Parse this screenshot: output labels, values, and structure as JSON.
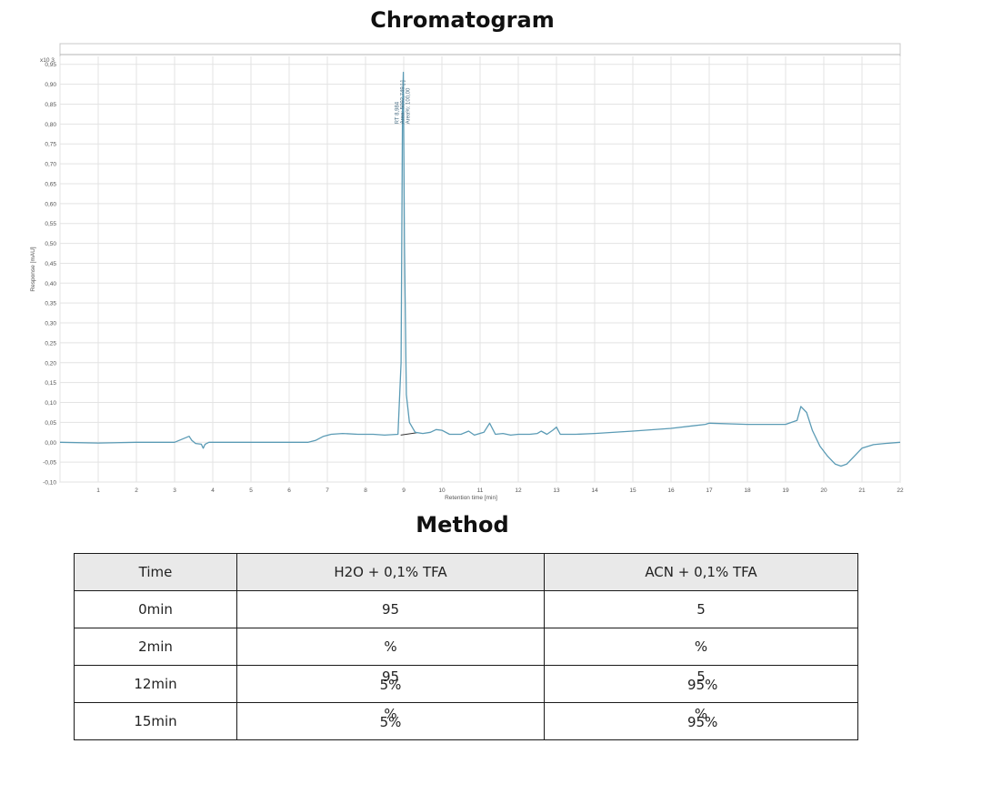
{
  "chart_title": "Chromatogram",
  "chart_data": {
    "type": "line",
    "title": "Chromatogram",
    "xlabel": "Retention time [min]",
    "ylabel": "Response [mAU]",
    "y_multiplier": "x10 3",
    "xlim": [
      0,
      22
    ],
    "ylim": [
      -0.1,
      0.97
    ],
    "x_ticks": [
      "1",
      "2",
      "3",
      "4",
      "5",
      "6",
      "7",
      "8",
      "9",
      "10",
      "11",
      "12",
      "13",
      "14",
      "15",
      "16",
      "17",
      "18",
      "19",
      "20",
      "21",
      "22"
    ],
    "y_ticks": [
      "-0,10",
      "-0,05",
      "0,00",
      "0,05",
      "0,10",
      "0,15",
      "0,20",
      "0,25",
      "0,30",
      "0,35",
      "0,40",
      "0,45",
      "0,50",
      "0,55",
      "0,60",
      "0,65",
      "0,70",
      "0,75",
      "0,80",
      "0,85",
      "0,90",
      "0,95"
    ],
    "grid": true,
    "peak_annotation": [
      "RT 8,984",
      "Area: 5092,749 [-]",
      "Area%: 100,00"
    ],
    "series": [
      {
        "color": "#5b9bb5",
        "x": [
          0,
          1,
          2,
          3,
          3.38,
          3.45,
          3.55,
          3.7,
          3.75,
          3.8,
          3.9,
          4.5,
          5.5,
          6.5,
          6.7,
          6.9,
          7.1,
          7.4,
          7.8,
          8.2,
          8.5,
          8.85,
          8.93,
          8.97,
          8.99,
          9.02,
          9.07,
          9.15,
          9.3,
          9.5,
          9.7,
          9.85,
          10,
          10.2,
          10.5,
          10.7,
          10.85,
          11.1,
          11.25,
          11.4,
          11.6,
          11.8,
          12,
          12.3,
          12.5,
          12.6,
          12.75,
          12.9,
          13,
          13.1,
          13.5,
          14,
          15,
          16,
          16.9,
          17,
          18,
          19,
          19.3,
          19.4,
          19.55,
          19.7,
          19.9,
          20.1,
          20.3,
          20.45,
          20.6,
          20.8,
          21,
          21.3,
          21.6,
          22
        ],
        "y": [
          0,
          -0.002,
          0,
          0,
          0.015,
          0.005,
          -0.003,
          -0.005,
          -0.015,
          -0.005,
          0,
          0,
          0,
          0,
          0.005,
          0.015,
          0.02,
          0.022,
          0.02,
          0.02,
          0.018,
          0.02,
          0.2,
          0.84,
          0.93,
          0.5,
          0.12,
          0.05,
          0.025,
          0.022,
          0.025,
          0.032,
          0.03,
          0.02,
          0.02,
          0.028,
          0.018,
          0.025,
          0.048,
          0.02,
          0.022,
          0.018,
          0.02,
          0.02,
          0.022,
          0.028,
          0.02,
          0.03,
          0.038,
          0.02,
          0.02,
          0.022,
          0.028,
          0.035,
          0.045,
          0.048,
          0.045,
          0.045,
          0.055,
          0.09,
          0.075,
          0.03,
          -0.01,
          -0.035,
          -0.055,
          -0.06,
          -0.055,
          -0.035,
          -0.015,
          -0.006,
          -0.003,
          0
        ]
      }
    ]
  },
  "method_title": "Method",
  "method_table": {
    "headers": [
      "Time",
      "H2O + 0,1% TFA",
      "ACN + 0,1% TFA"
    ],
    "rows": [
      {
        "time": "0min",
        "h2o": "95",
        "acn": "5"
      },
      {
        "time": "2min",
        "h2o": "%",
        "acn": "%"
      },
      {
        "time": "12min",
        "h2o_over": "95",
        "h2o_under": "5%",
        "acn_over": "5",
        "acn_under": "95%"
      },
      {
        "time": "15min",
        "h2o_over": "%",
        "h2o_under": "5%",
        "acn_over": "%",
        "acn_under": "95%"
      }
    ]
  }
}
